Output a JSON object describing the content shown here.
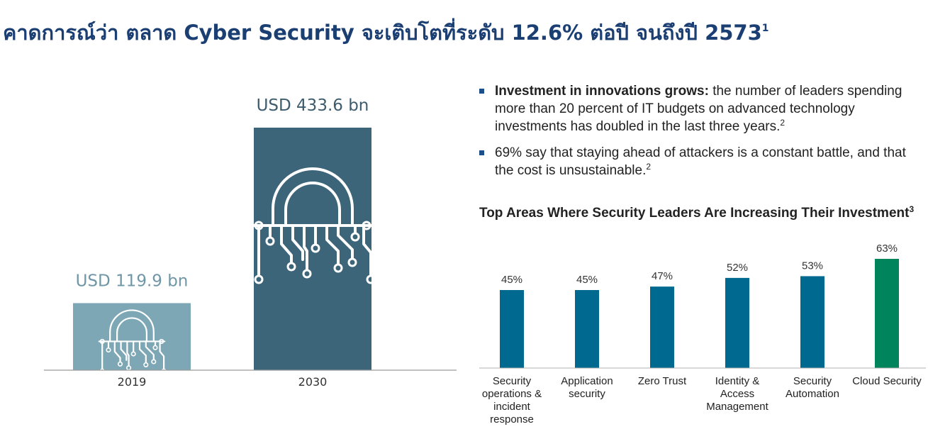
{
  "headline": {
    "text": "คาดการณ์ว่า ตลาด Cyber Security จะเติบโตที่ระดับ 12.6% ต่อปี จนถึงปี 2573",
    "footnote": "1"
  },
  "bullets": [
    {
      "bold": "Investment in innovations grows:",
      "text": " the number of leaders spending more than 20 percent of IT budgets on advanced technology investments has doubled in the last three years.",
      "footnote": "2"
    },
    {
      "bold": "",
      "text": "69% say that staying ahead of attackers is a constant battle, and that the cost is unsustainable.",
      "footnote": "2"
    }
  ],
  "colors": {
    "headline": "#1b3f73",
    "bar_2019": "#7ea7b5",
    "bar_2030": "#3d6579",
    "bar_blue": "#00698f",
    "bar_green": "#00845c",
    "lock_line": "#ffffff"
  },
  "chart_data": [
    {
      "type": "bar",
      "title": "",
      "categories": [
        "2019",
        "2030"
      ],
      "values": [
        119.9,
        433.6
      ],
      "value_labels": [
        "USD 119.9 bn",
        "USD 433.6 bn"
      ],
      "unit": "USD bn",
      "ylim": [
        0,
        433.6
      ],
      "grid": false,
      "icons": [
        "padlock-circuit-icon",
        "padlock-circuit-icon"
      ]
    },
    {
      "type": "bar",
      "title": "Top Areas Where Security Leaders Are Increasing Their Investment",
      "title_footnote": "3",
      "categories": [
        "Security operations & incident response",
        "Application security",
        "Zero Trust",
        "Identity & Access Management",
        "Security Automation",
        "Cloud Security"
      ],
      "values": [
        45,
        45,
        47,
        52,
        53,
        63
      ],
      "value_labels": [
        "45%",
        "45%",
        "47%",
        "52%",
        "53%",
        "63%"
      ],
      "ylim": [
        0,
        63
      ],
      "grid": false,
      "highlight_index": 5
    }
  ]
}
